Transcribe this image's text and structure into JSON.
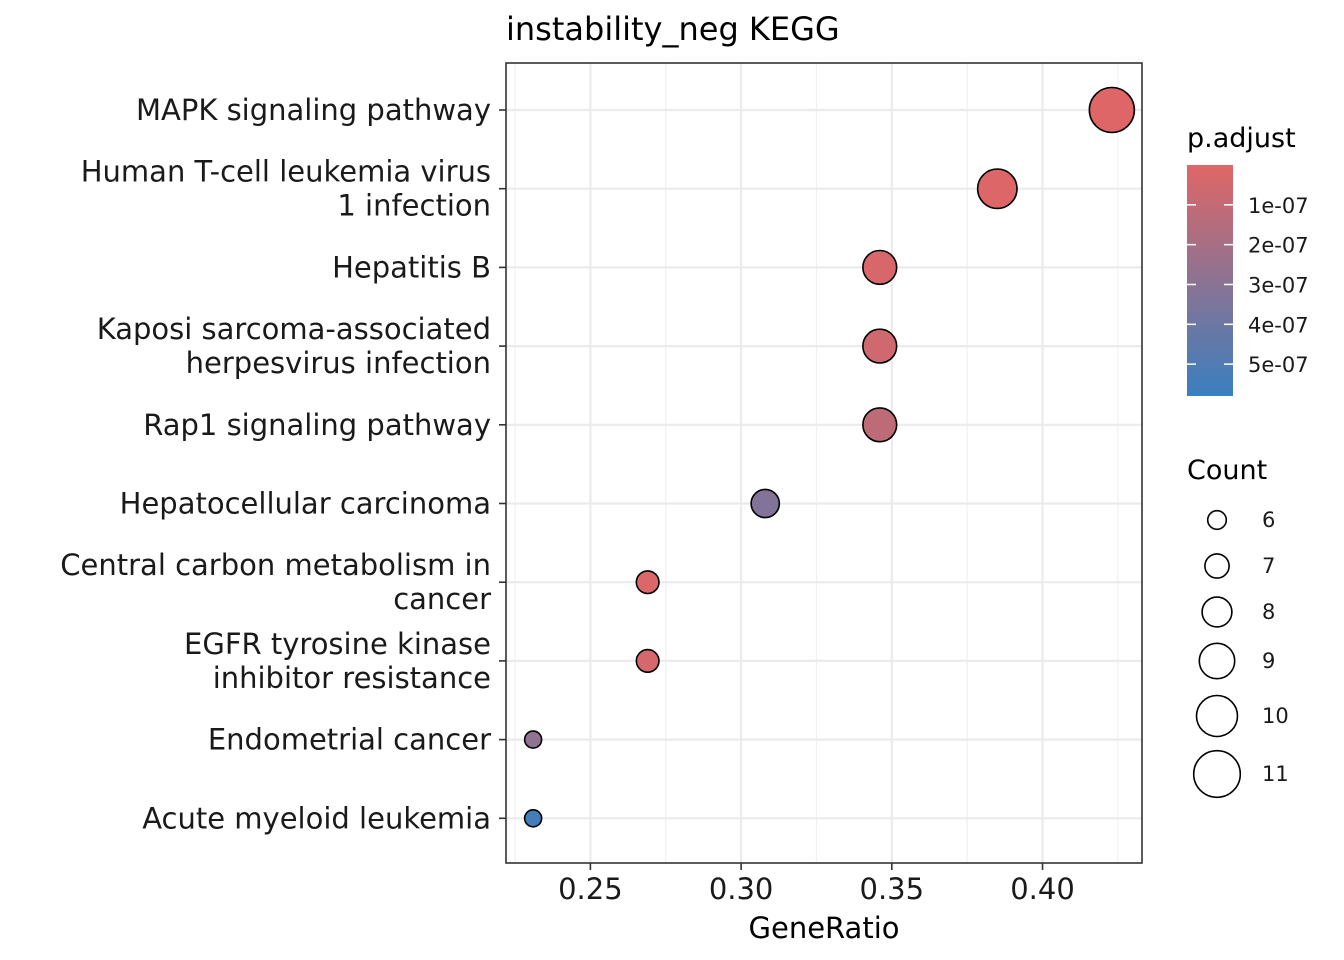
{
  "chart_data": {
    "type": "scatter",
    "title": "instability_neg KEGG",
    "xlabel": "GeneRatio",
    "ylabel": "",
    "xlim": [
      0.222,
      0.433
    ],
    "xticks": [
      0.25,
      0.3,
      0.35,
      0.4
    ],
    "xtick_labels": [
      "0.25",
      "0.30",
      "0.35",
      "0.40"
    ],
    "grid": true,
    "categories": [
      [
        "MAPK signaling pathway"
      ],
      [
        "Human T-cell leukemia virus",
        "1 infection"
      ],
      [
        "Hepatitis B"
      ],
      [
        "Kaposi sarcoma-associated",
        "herpesvirus infection"
      ],
      [
        "Rap1 signaling pathway"
      ],
      [
        "Hepatocellular carcinoma"
      ],
      [
        "Central carbon metabolism in",
        "cancer"
      ],
      [
        "EGFR tyrosine kinase",
        "inhibitor resistance"
      ],
      [
        "Endometrial cancer"
      ],
      [
        "Acute myeloid leukemia"
      ]
    ],
    "points": [
      {
        "gene_ratio": 0.423,
        "count": 11,
        "p_adjust": 2e-09
      },
      {
        "gene_ratio": 0.385,
        "count": 10,
        "p_adjust": 1e-08
      },
      {
        "gene_ratio": 0.346,
        "count": 9,
        "p_adjust": 3e-08
      },
      {
        "gene_ratio": 0.346,
        "count": 9,
        "p_adjust": 6e-08
      },
      {
        "gene_ratio": 0.346,
        "count": 9,
        "p_adjust": 1.2e-07
      },
      {
        "gene_ratio": 0.308,
        "count": 8,
        "p_adjust": 3.3e-07
      },
      {
        "gene_ratio": 0.269,
        "count": 7,
        "p_adjust": 2e-08
      },
      {
        "gene_ratio": 0.269,
        "count": 7,
        "p_adjust": 4e-08
      },
      {
        "gene_ratio": 0.231,
        "count": 6,
        "p_adjust": 2.8e-07
      },
      {
        "gene_ratio": 0.231,
        "count": 6,
        "p_adjust": 5.5e-07
      }
    ],
    "color_legend": {
      "title": "p.adjust",
      "range": [
        0,
        5.8e-07
      ],
      "low_color": "#E06666",
      "high_color": "#3A7FBF",
      "ticks": [
        1e-07,
        2e-07,
        3e-07,
        4e-07,
        5e-07
      ],
      "tick_labels": [
        "1e-07",
        "2e-07",
        "3e-07",
        "4e-07",
        "5e-07"
      ]
    },
    "size_legend": {
      "title": "Count",
      "values": [
        6,
        7,
        8,
        9,
        10,
        11
      ],
      "labels": [
        "6",
        "7",
        "8",
        "9",
        "10",
        "11"
      ]
    }
  }
}
